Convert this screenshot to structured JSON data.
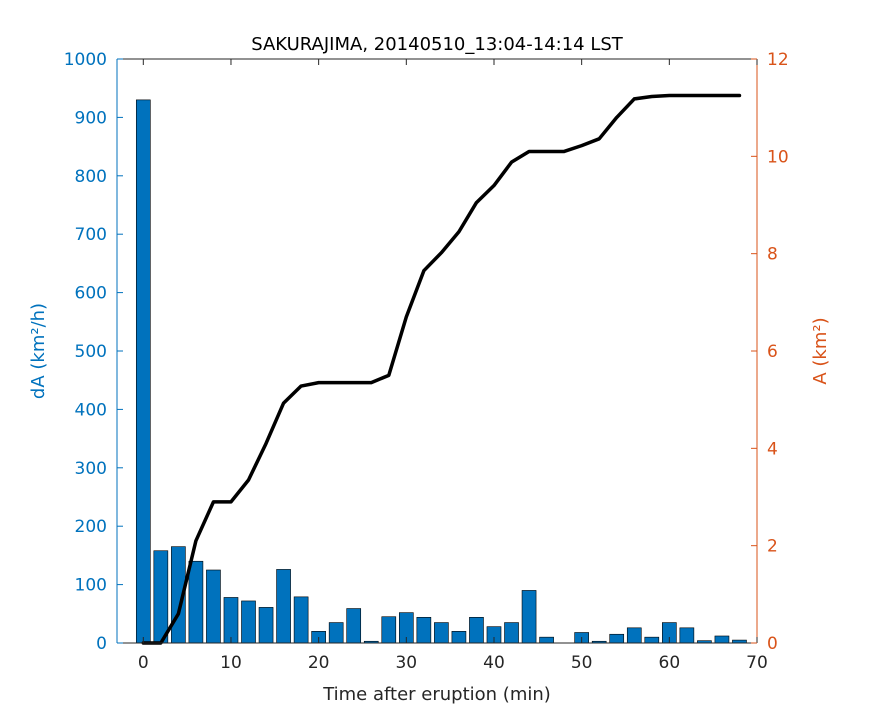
{
  "chart_data": {
    "type": "bar",
    "title": "SAKURAJIMA, 20140510_13:04-14:14 LST",
    "xlabel": "Time after eruption (min)",
    "ylabel_left": "dA (km²/h)",
    "ylabel_right": "A (km²)",
    "xlim": [
      -3,
      70
    ],
    "ylim_left": [
      0,
      1000
    ],
    "ylim_right": [
      0,
      12
    ],
    "x_ticks": [
      0,
      10,
      20,
      30,
      40,
      50,
      60,
      70
    ],
    "y_left_ticks": [
      0,
      100,
      200,
      300,
      400,
      500,
      600,
      700,
      800,
      900,
      1000
    ],
    "y_right_ticks": [
      0,
      2,
      4,
      6,
      8,
      10,
      12
    ],
    "colors": {
      "bars": "#0072BD",
      "left_axis": "#0072BD",
      "right_axis": "#D95319",
      "line": "#000000"
    },
    "series": [
      {
        "kind": "bar",
        "axis": "left",
        "x": [
          0,
          2,
          4,
          6,
          8,
          10,
          12,
          14,
          16,
          18,
          20,
          22,
          24,
          26,
          28,
          30,
          32,
          34,
          36,
          38,
          40,
          42,
          44,
          46,
          48,
          50,
          52,
          54,
          56,
          58,
          60,
          62,
          64,
          66,
          68
        ],
        "values": [
          930,
          158,
          165,
          140,
          125,
          78,
          72,
          61,
          126,
          79,
          20,
          35,
          59,
          3,
          45,
          52,
          44,
          35,
          20,
          44,
          28,
          35,
          90,
          10,
          0,
          18,
          3,
          15,
          26,
          10,
          35,
          26,
          4,
          12,
          5
        ]
      },
      {
        "kind": "line",
        "axis": "right",
        "x": [
          0,
          2,
          4,
          6,
          8,
          10,
          12,
          14,
          16,
          18,
          20,
          22,
          24,
          26,
          28,
          30,
          32,
          34,
          36,
          38,
          40,
          42,
          44,
          46,
          48,
          50,
          52,
          54,
          56,
          58,
          60,
          62,
          64,
          66,
          68
        ],
        "values": [
          0,
          0,
          0.6,
          2.1,
          2.9,
          2.9,
          3.35,
          4.1,
          4.93,
          5.28,
          5.35,
          5.35,
          5.35,
          5.35,
          5.5,
          6.7,
          7.65,
          8.02,
          8.45,
          9.05,
          9.4,
          9.88,
          10.1,
          10.1,
          10.1,
          10.22,
          10.36,
          10.8,
          11.18,
          11.23,
          11.25,
          11.25,
          11.25,
          11.25,
          11.25
        ]
      }
    ]
  }
}
